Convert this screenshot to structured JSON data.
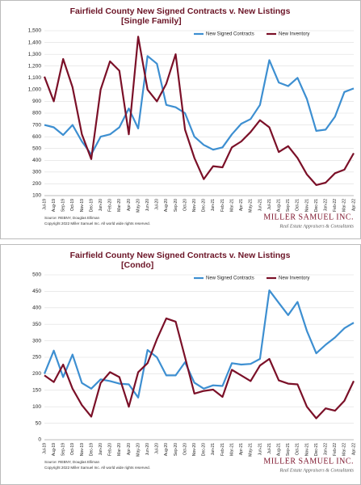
{
  "chart_data": [
    {
      "type": "line",
      "title": "Fairfield County New Signed Contracts v. New Listings",
      "subtitle": "[Single Family]",
      "categories": [
        "Jul-19",
        "Aug-19",
        "Sep-19",
        "Oct-19",
        "Nov-19",
        "Dec-19",
        "Jan-20",
        "Feb-20",
        "Mar-20",
        "Apr-20",
        "May-20",
        "Jun-20",
        "Jul-20",
        "Aug-20",
        "Sep-20",
        "Oct-20",
        "Nov-20",
        "Dec-20",
        "Jan-21",
        "Feb-21",
        "Mar-21",
        "Apr-21",
        "May-21",
        "Jun-21",
        "Jul-21",
        "Aug-21",
        "Sep-21",
        "Oct-21",
        "Nov-21",
        "Dec-21",
        "Jan-22",
        "Feb-22",
        "Mar-22",
        "Apr-22"
      ],
      "series": [
        {
          "name": "New Signed Contracts",
          "color": "#3d8fd1",
          "values": [
            700,
            680,
            615,
            700,
            560,
            450,
            600,
            620,
            680,
            840,
            670,
            1285,
            1220,
            870,
            850,
            800,
            600,
            530,
            490,
            510,
            620,
            710,
            750,
            870,
            1250,
            1060,
            1030,
            1100,
            920,
            650,
            660,
            770,
            980,
            1010
          ]
        },
        {
          "name": "New Inventory",
          "color": "#7b1028",
          "values": [
            1110,
            900,
            1260,
            1020,
            620,
            410,
            1000,
            1240,
            1160,
            620,
            1450,
            1000,
            900,
            1050,
            1300,
            660,
            420,
            240,
            350,
            340,
            510,
            560,
            640,
            740,
            680,
            470,
            520,
            420,
            280,
            190,
            210,
            290,
            320,
            460
          ]
        }
      ],
      "ylim": [
        100,
        1500
      ],
      "yticks": [
        100,
        200,
        300,
        400,
        500,
        600,
        700,
        800,
        900,
        {
          "value": 1000,
          "label": "1,000"
        },
        {
          "value": 1100,
          "label": "1,100"
        },
        {
          "value": 1200,
          "label": "1,200"
        },
        {
          "value": 1300,
          "label": "1,300"
        },
        {
          "value": 1400,
          "label": "1,400"
        },
        {
          "value": 1500,
          "label": "1,500"
        }
      ],
      "grid": true,
      "source": "Source: REBNY, Douglas Elliman",
      "copyright": "Copyright 2022 Miller Samuel Inc. All world wide rights reserved.",
      "logo": "MILLER SAMUEL INC.",
      "logo_tagline": "Real Estate Appraisers & Consultants"
    },
    {
      "type": "line",
      "title": "Fairfield County New Signed Contracts v. New Listings",
      "subtitle": "[Condo]",
      "categories": [
        "Jul-19",
        "Aug-19",
        "Sep-19",
        "Oct-19",
        "Nov-19",
        "Dec-19",
        "Jan-20",
        "Feb-20",
        "Mar-20",
        "Apr-20",
        "May-20",
        "Jun-20",
        "Jul-20",
        "Aug-20",
        "Sep-20",
        "Oct-20",
        "Nov-20",
        "Dec-20",
        "Jan-21",
        "Feb-21",
        "Mar-21",
        "Apr-21",
        "May-21",
        "Jun-21",
        "Jul-21",
        "Aug-21",
        "Sep-21",
        "Oct-21",
        "Nov-21",
        "Dec-21",
        "Jan-22",
        "Feb-22",
        "Mar-22",
        "Apr-22"
      ],
      "series": [
        {
          "name": "New Signed Contracts",
          "color": "#3d8fd1",
          "values": [
            200,
            270,
            190,
            258,
            172,
            155,
            183,
            178,
            170,
            168,
            128,
            272,
            250,
            195,
            195,
            235,
            173,
            155,
            165,
            163,
            232,
            228,
            230,
            245,
            453,
            415,
            378,
            418,
            330,
            262,
            288,
            310,
            338,
            355
          ]
        },
        {
          "name": "New Inventory",
          "color": "#7b1028",
          "values": [
            195,
            175,
            228,
            155,
            105,
            70,
            172,
            205,
            190,
            100,
            205,
            232,
            305,
            368,
            358,
            250,
            140,
            148,
            152,
            130,
            212,
            195,
            178,
            225,
            245,
            180,
            170,
            168,
            100,
            65,
            95,
            88,
            118,
            178
          ]
        }
      ],
      "ylim": [
        0,
        500
      ],
      "yticks": [
        0,
        50,
        100,
        150,
        200,
        250,
        300,
        350,
        400,
        450,
        500
      ],
      "grid": true,
      "source": "Source: REBNY, Douglas Elliman",
      "copyright": "Copyright 2022 Miller Samuel Inc. All world wide rights reserved.",
      "logo": "MILLER SAMUEL INC.",
      "logo_tagline": "Real Estate Appraisers & Consultants"
    }
  ]
}
